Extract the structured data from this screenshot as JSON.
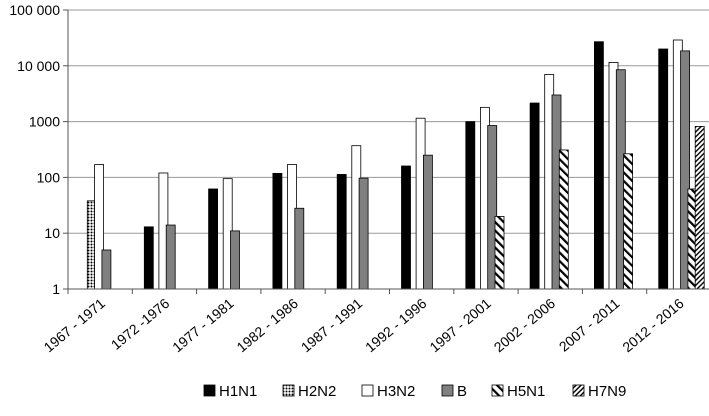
{
  "chart_data": {
    "type": "bar",
    "title": "",
    "xlabel": "",
    "ylabel": "",
    "yscale": "log",
    "ylim": [
      1,
      100000
    ],
    "yticks": [
      1,
      10,
      100,
      1000,
      10000,
      100000
    ],
    "ytick_labels": [
      "1",
      "10",
      "100",
      "1000",
      "10 000",
      "100 000"
    ],
    "grid": "horizontal",
    "legend_position": "bottom",
    "categories": [
      "1967 - 1971",
      "1972 -1976",
      "1977 - 1981",
      "1982 - 1986",
      "1987 - 1991",
      "1992 - 1996",
      "1997 - 2001",
      "2002 - 2006",
      "2007 - 2011",
      "2012 - 2016"
    ],
    "series": [
      {
        "name": "H1N1",
        "pattern": "solid-black",
        "values": [
          null,
          13,
          62,
          118,
          113,
          160,
          1000,
          2150,
          27000,
          20000
        ]
      },
      {
        "name": "H2N2",
        "pattern": "dots",
        "values": [
          38,
          null,
          null,
          null,
          null,
          null,
          null,
          null,
          null,
          null
        ]
      },
      {
        "name": "H3N2",
        "pattern": "white",
        "values": [
          170,
          120,
          95,
          170,
          370,
          1150,
          1800,
          7000,
          11500,
          29000
        ]
      },
      {
        "name": "B",
        "pattern": "solid-gray",
        "values": [
          5,
          14,
          11,
          28,
          97,
          250,
          850,
          3000,
          8500,
          18500
        ]
      },
      {
        "name": "H5N1",
        "pattern": "wide-diagonal",
        "values": [
          null,
          null,
          null,
          null,
          null,
          null,
          20,
          310,
          265,
          62
        ]
      },
      {
        "name": "H7N9",
        "pattern": "dense-diagonal",
        "values": [
          null,
          null,
          null,
          null,
          null,
          null,
          null,
          null,
          null,
          820
        ]
      }
    ]
  }
}
